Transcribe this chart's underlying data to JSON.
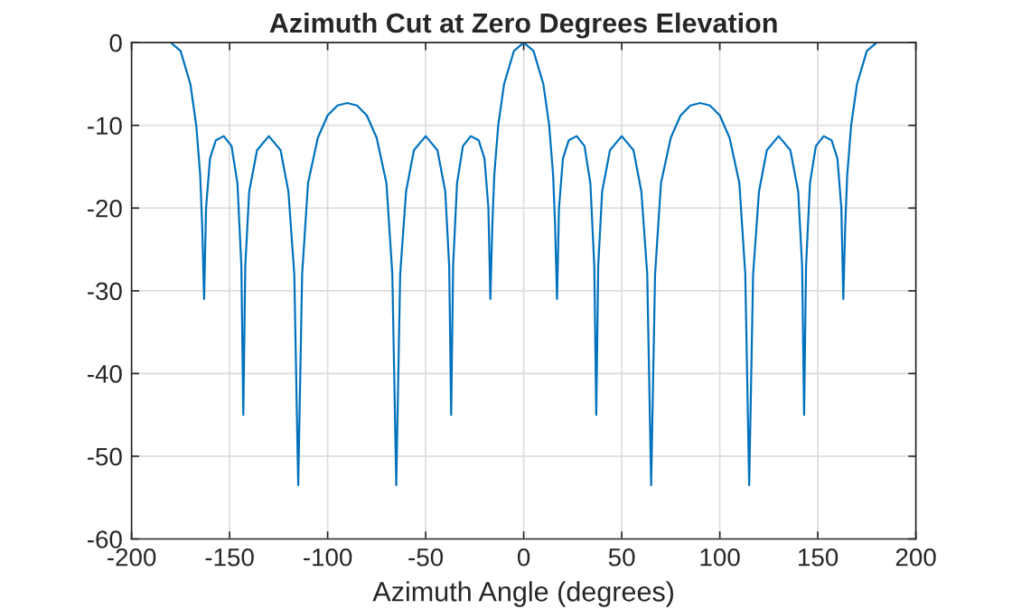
{
  "chart_data": {
    "type": "line",
    "title": "Azimuth Cut at Zero Degrees Elevation",
    "xlabel": "Azimuth Angle (degrees)",
    "x": [
      -180,
      -175,
      -170,
      -167,
      -165,
      -164,
      -163,
      -162,
      -160,
      -157,
      -153,
      -149,
      -146,
      -144,
      -143,
      -142,
      -140,
      -136,
      -130,
      -124,
      -120,
      -117,
      -115,
      -113,
      -110,
      -105,
      -100,
      -95,
      -90,
      -85,
      -80,
      -75,
      -70,
      -67,
      -65,
      -63,
      -60,
      -56,
      -50,
      -44,
      -40,
      -38,
      -37,
      -36,
      -34,
      -31,
      -27,
      -23,
      -20,
      -18,
      -17,
      -16,
      -15,
      -13,
      -10,
      -5,
      0,
      5,
      10,
      13,
      15,
      16,
      17,
      18,
      20,
      23,
      27,
      31,
      34,
      36,
      37,
      38,
      40,
      44,
      50,
      56,
      60,
      63,
      65,
      67,
      70,
      75,
      80,
      85,
      90,
      95,
      100,
      105,
      110,
      113,
      115,
      117,
      120,
      124,
      130,
      136,
      140,
      142,
      143,
      144,
      146,
      149,
      153,
      157,
      160,
      162,
      163,
      164,
      165,
      167,
      170,
      175,
      180
    ],
    "series": [
      {
        "color": "#0072bd",
        "values": [
          0,
          -1,
          -5,
          -10,
          -16,
          -22,
          -31,
          -20,
          -14,
          -11.8,
          -11.3,
          -12.5,
          -17,
          -27,
          -45,
          -27,
          -18,
          -13,
          -11.3,
          -13,
          -18,
          -28,
          -53.5,
          -28,
          -17,
          -11.5,
          -8.8,
          -7.6,
          -7.3,
          -7.6,
          -8.8,
          -11.5,
          -17,
          -28,
          -53.5,
          -28,
          -18,
          -13,
          -11.3,
          -13,
          -18,
          -27,
          -45,
          -27,
          -17,
          -12.5,
          -11.3,
          -11.8,
          -14,
          -20,
          -31,
          -22,
          -16,
          -10,
          -5,
          -1,
          0,
          -1,
          -5,
          -10,
          -16,
          -22,
          -31,
          -20,
          -14,
          -11.8,
          -11.3,
          -12.5,
          -17,
          -27,
          -45,
          -27,
          -18,
          -13,
          -11.3,
          -13,
          -18,
          -28,
          -53.5,
          -28,
          -17,
          -11.5,
          -8.8,
          -7.6,
          -7.3,
          -7.6,
          -8.8,
          -11.5,
          -17,
          -28,
          -53.5,
          -28,
          -18,
          -13,
          -11.3,
          -13,
          -18,
          -27,
          -45,
          -27,
          -17,
          -12.5,
          -11.3,
          -11.8,
          -14,
          -20,
          -31,
          -22,
          -16,
          -10,
          -5,
          -1,
          0
        ]
      }
    ],
    "xlim": [
      -200,
      200
    ],
    "xticks": [
      -200,
      -150,
      -100,
      -50,
      0,
      50,
      100,
      150,
      200
    ],
    "ylim": [
      -60,
      0
    ],
    "yticks": [
      -60,
      -50,
      -40,
      -30,
      -20,
      -10,
      0
    ],
    "grid": true,
    "legend": false,
    "marker": "none",
    "line_style": "solid"
  }
}
